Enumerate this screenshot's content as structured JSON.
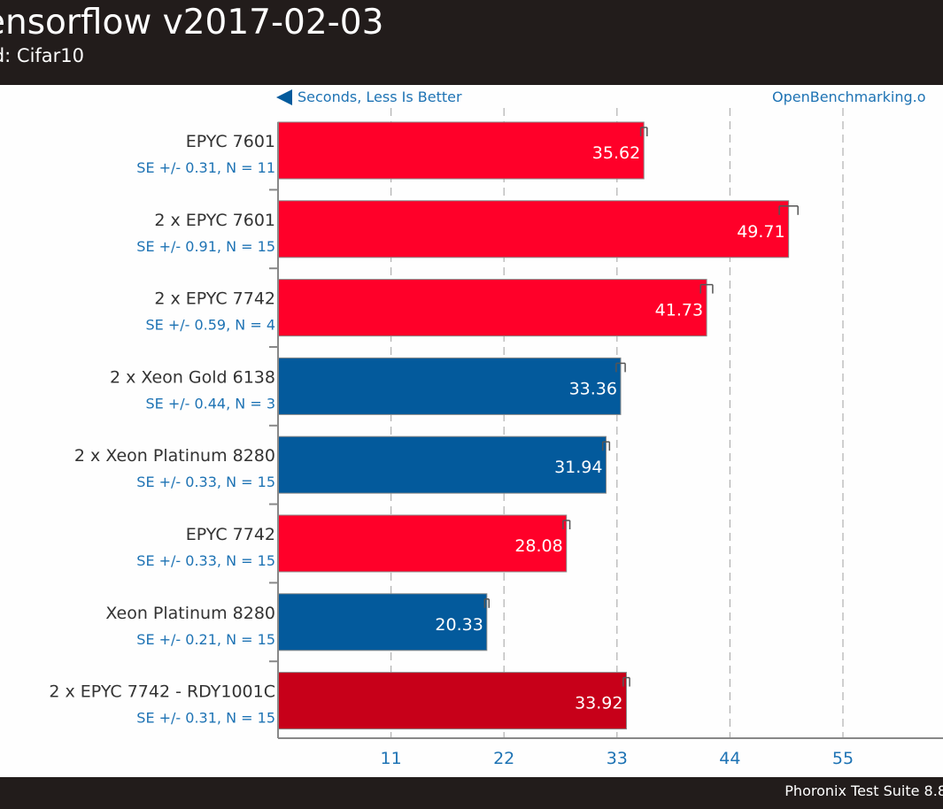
{
  "header": {
    "title": "ensorflow v2017-02-03",
    "subtitle": "ld: Cifar10"
  },
  "footer": {
    "text": "Phoronix Test Suite 8.8"
  },
  "chart_data": {
    "type": "bar",
    "orientation": "horizontal",
    "direction_note": "Seconds, Less Is Better",
    "source": "OpenBenchmarking.o",
    "xlim": [
      0,
      66
    ],
    "xticks": [
      11,
      22,
      33,
      44,
      55
    ],
    "grid": true,
    "categories": [
      "EPYC 7601",
      "2 x EPYC 7601",
      "2 x EPYC 7742",
      "2 x Xeon Gold 6138",
      "2 x Xeon Platinum 8280",
      "EPYC 7742",
      "Xeon Platinum 8280",
      "2 x EPYC 7742 - RDY1001C"
    ],
    "values": [
      35.62,
      49.71,
      41.73,
      33.36,
      31.94,
      28.08,
      20.33,
      33.92
    ],
    "value_labels": [
      "35.62",
      "49.71",
      "41.73",
      "33.36",
      "31.94",
      "28.08",
      "20.33",
      "33.92"
    ],
    "errors": [
      0.31,
      0.91,
      0.59,
      0.44,
      0.33,
      0.33,
      0.21,
      0.31
    ],
    "se_labels": [
      "SE +/- 0.31, N = 11",
      "SE +/- 0.91, N = 15",
      "SE +/- 0.59, N = 4",
      "SE +/- 0.44, N = 3",
      "SE +/- 0.33, N = 15",
      "SE +/- 0.33, N = 15",
      "SE +/- 0.21, N = 15",
      "SE +/- 0.31, N = 15"
    ],
    "bar_colors": [
      "#ff0029",
      "#ff0029",
      "#ff0029",
      "#035a9c",
      "#035a9c",
      "#ff0029",
      "#035a9c",
      "#c70019"
    ],
    "colors": {
      "text": "#333333",
      "se_text": "#1e73b4",
      "tick_text": "#1e73b4",
      "grid": "#b0b0b0",
      "axis": "#888888",
      "arrow": "#035a9c"
    }
  }
}
